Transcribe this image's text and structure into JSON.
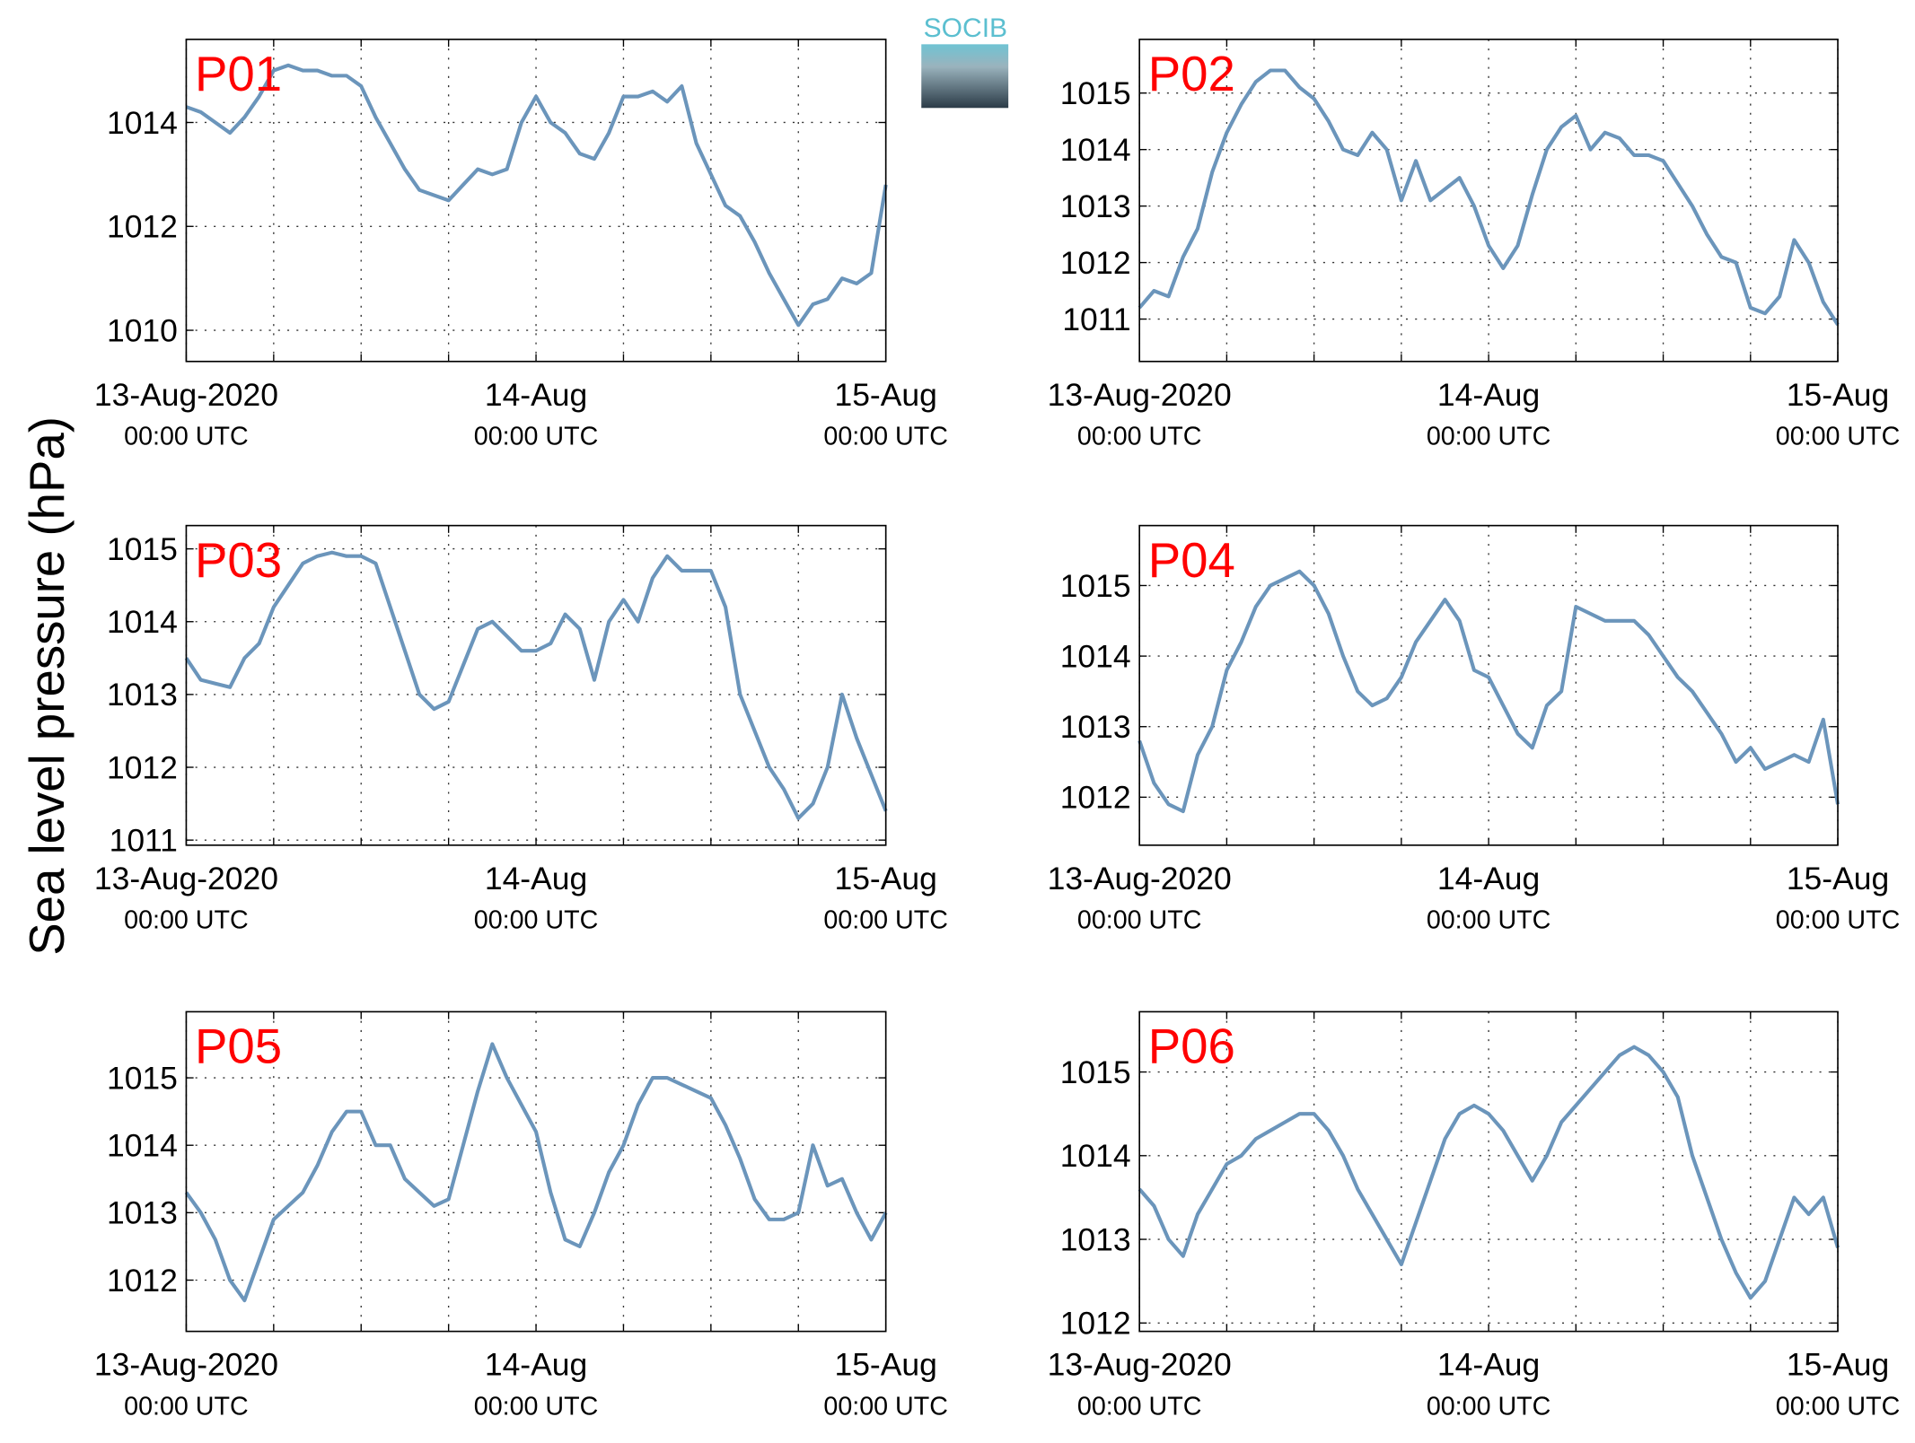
{
  "ylabel": "Sea level pressure (hPa)",
  "logo": "SOCIB",
  "chart_data": [
    {
      "type": "line",
      "title": "P01",
      "title_color": "#ff0000",
      "color": "#6b95bb",
      "grid": true,
      "x": [
        0,
        1,
        2,
        3,
        4,
        5,
        6,
        7,
        8,
        9,
        10,
        11,
        12,
        13,
        14,
        15,
        16,
        17,
        18,
        19,
        20,
        21,
        22,
        23,
        24,
        25,
        26,
        27,
        28,
        29,
        30,
        31,
        32,
        33,
        34,
        35,
        36,
        37,
        38,
        39,
        40,
        41,
        42,
        43,
        44,
        45,
        46,
        47,
        48
      ],
      "values": [
        1014.3,
        1014.2,
        1014.0,
        1013.8,
        1014.1,
        1014.5,
        1015.0,
        1015.1,
        1015.0,
        1015.0,
        1014.9,
        1014.9,
        1014.7,
        1014.1,
        1013.6,
        1013.1,
        1012.7,
        1012.6,
        1012.5,
        1012.8,
        1013.1,
        1013.0,
        1013.1,
        1014.0,
        1014.5,
        1014.0,
        1013.8,
        1013.4,
        1013.3,
        1013.8,
        1014.5,
        1014.5,
        1014.6,
        1014.4,
        1014.7,
        1013.6,
        1013.0,
        1012.4,
        1012.2,
        1011.7,
        1011.1,
        1010.6,
        1010.1,
        1010.5,
        1010.6,
        1011.0,
        1010.9,
        1011.1,
        1012.8
      ],
      "xlim": [
        0,
        48
      ],
      "xticks": [
        {
          "value": 0,
          "label": "13-Aug-2020"
        },
        {
          "value": 24,
          "label": "14-Aug"
        },
        {
          "value": 48,
          "label": "15-Aug"
        }
      ],
      "xtick_sublabel": "00:00 UTC",
      "xminorticks": [
        6,
        12,
        18,
        30,
        36,
        42
      ],
      "ylim": [
        1009.4,
        1015.6
      ],
      "yticks": [
        1010,
        1012,
        1014
      ]
    },
    {
      "type": "line",
      "title": "P02",
      "title_color": "#ff0000",
      "color": "#6b95bb",
      "grid": true,
      "x": [
        0,
        1,
        2,
        3,
        4,
        5,
        6,
        7,
        8,
        9,
        10,
        11,
        12,
        13,
        14,
        15,
        16,
        17,
        18,
        19,
        20,
        21,
        22,
        23,
        24,
        25,
        26,
        27,
        28,
        29,
        30,
        31,
        32,
        33,
        34,
        35,
        36,
        37,
        38,
        39,
        40,
        41,
        42,
        43,
        44,
        45,
        46,
        47,
        48
      ],
      "values": [
        1011.2,
        1011.5,
        1011.4,
        1012.1,
        1012.6,
        1013.6,
        1014.3,
        1014.8,
        1015.2,
        1015.4,
        1015.4,
        1015.1,
        1014.9,
        1014.5,
        1014.0,
        1013.9,
        1014.3,
        1014.0,
        1013.1,
        1013.8,
        1013.1,
        1013.3,
        1013.5,
        1013.0,
        1012.3,
        1011.9,
        1012.3,
        1013.2,
        1014.0,
        1014.4,
        1014.6,
        1014.0,
        1014.3,
        1014.2,
        1013.9,
        1013.9,
        1013.8,
        1013.4,
        1013.0,
        1012.5,
        1012.1,
        1012.0,
        1011.2,
        1011.1,
        1011.4,
        1012.4,
        1012.0,
        1011.3,
        1010.9
      ],
      "xlim": [
        0,
        48
      ],
      "xticks": [
        {
          "value": 0,
          "label": "13-Aug-2020"
        },
        {
          "value": 24,
          "label": "14-Aug"
        },
        {
          "value": 48,
          "label": "15-Aug"
        }
      ],
      "xtick_sublabel": "00:00 UTC",
      "xminorticks": [
        6,
        12,
        18,
        30,
        36,
        42
      ],
      "ylim": [
        1010.25,
        1015.95
      ],
      "yticks": [
        1011,
        1012,
        1013,
        1014,
        1015
      ]
    },
    {
      "type": "line",
      "title": "P03",
      "title_color": "#ff0000",
      "color": "#6b95bb",
      "grid": true,
      "x": [
        0,
        1,
        2,
        3,
        4,
        5,
        6,
        7,
        8,
        9,
        10,
        11,
        12,
        13,
        14,
        15,
        16,
        17,
        18,
        19,
        20,
        21,
        22,
        23,
        24,
        25,
        26,
        27,
        28,
        29,
        30,
        31,
        32,
        33,
        34,
        35,
        36,
        37,
        38,
        39,
        40,
        41,
        42,
        43,
        44,
        45,
        46,
        47,
        48
      ],
      "values": [
        1013.5,
        1013.2,
        1013.15,
        1013.1,
        1013.5,
        1013.7,
        1014.2,
        1014.5,
        1014.8,
        1014.9,
        1014.95,
        1014.9,
        1014.9,
        1014.8,
        1014.2,
        1013.6,
        1013.0,
        1012.8,
        1012.9,
        1013.4,
        1013.9,
        1014.0,
        1013.8,
        1013.6,
        1013.6,
        1013.7,
        1014.1,
        1013.9,
        1013.2,
        1014.0,
        1014.3,
        1014.0,
        1014.6,
        1014.9,
        1014.7,
        1014.7,
        1014.7,
        1014.2,
        1013.0,
        1012.5,
        1012.0,
        1011.7,
        1011.3,
        1011.5,
        1012.0,
        1013.0,
        1012.4,
        1011.9,
        1011.4
      ],
      "xlim": [
        0,
        48
      ],
      "xticks": [
        {
          "value": 0,
          "label": "13-Aug-2020"
        },
        {
          "value": 24,
          "label": "14-Aug"
        },
        {
          "value": 48,
          "label": "15-Aug"
        }
      ],
      "xtick_sublabel": "00:00 UTC",
      "xminorticks": [
        6,
        12,
        18,
        30,
        36,
        42
      ],
      "ylim": [
        1010.93,
        1015.32
      ],
      "yticks": [
        1011,
        1012,
        1013,
        1014,
        1015
      ]
    },
    {
      "type": "line",
      "title": "P04",
      "title_color": "#ff0000",
      "color": "#6b95bb",
      "grid": true,
      "x": [
        0,
        1,
        2,
        3,
        4,
        5,
        6,
        7,
        8,
        9,
        10,
        11,
        12,
        13,
        14,
        15,
        16,
        17,
        18,
        19,
        20,
        21,
        22,
        23,
        24,
        25,
        26,
        27,
        28,
        29,
        30,
        31,
        32,
        33,
        34,
        35,
        36,
        37,
        38,
        39,
        40,
        41,
        42,
        43,
        44,
        45,
        46,
        47,
        48
      ],
      "values": [
        1012.8,
        1012.2,
        1011.9,
        1011.8,
        1012.6,
        1013.0,
        1013.8,
        1014.2,
        1014.7,
        1015.0,
        1015.1,
        1015.2,
        1015.0,
        1014.6,
        1014.0,
        1013.5,
        1013.3,
        1013.4,
        1013.7,
        1014.2,
        1014.5,
        1014.8,
        1014.5,
        1013.8,
        1013.7,
        1013.3,
        1012.9,
        1012.7,
        1013.3,
        1013.5,
        1014.7,
        1014.6,
        1014.5,
        1014.5,
        1014.5,
        1014.3,
        1014.0,
        1013.7,
        1013.5,
        1013.2,
        1012.9,
        1012.5,
        1012.7,
        1012.4,
        1012.5,
        1012.6,
        1012.5,
        1013.1,
        1011.9
      ],
      "xlim": [
        0,
        48
      ],
      "xticks": [
        {
          "value": 0,
          "label": "13-Aug-2020"
        },
        {
          "value": 24,
          "label": "14-Aug"
        },
        {
          "value": 48,
          "label": "15-Aug"
        }
      ],
      "xtick_sublabel": "00:00 UTC",
      "xminorticks": [
        6,
        12,
        18,
        30,
        36,
        42
      ],
      "ylim": [
        1011.32,
        1015.85
      ],
      "yticks": [
        1012,
        1013,
        1014,
        1015
      ]
    },
    {
      "type": "line",
      "title": "P05",
      "title_color": "#ff0000",
      "color": "#6b95bb",
      "grid": true,
      "x": [
        0,
        1,
        2,
        3,
        4,
        5,
        6,
        7,
        8,
        9,
        10,
        11,
        12,
        13,
        14,
        15,
        16,
        17,
        18,
        19,
        20,
        21,
        22,
        23,
        24,
        25,
        26,
        27,
        28,
        29,
        30,
        31,
        32,
        33,
        34,
        35,
        36,
        37,
        38,
        39,
        40,
        41,
        42,
        43,
        44,
        45,
        46,
        47,
        48
      ],
      "values": [
        1013.3,
        1013.0,
        1012.6,
        1012.0,
        1011.7,
        1012.3,
        1012.9,
        1013.1,
        1013.3,
        1013.7,
        1014.2,
        1014.5,
        1014.5,
        1014.0,
        1014.0,
        1013.5,
        1013.3,
        1013.1,
        1013.2,
        1014.0,
        1014.8,
        1015.5,
        1015.0,
        1014.6,
        1014.2,
        1013.3,
        1012.6,
        1012.5,
        1013.0,
        1013.6,
        1014.0,
        1014.6,
        1015.0,
        1015.0,
        1014.9,
        1014.8,
        1014.7,
        1014.3,
        1013.8,
        1013.2,
        1012.9,
        1012.9,
        1013.0,
        1014.0,
        1013.4,
        1013.5,
        1013.0,
        1012.6,
        1013.0
      ],
      "xlim": [
        0,
        48
      ],
      "xticks": [
        {
          "value": 0,
          "label": "13-Aug-2020"
        },
        {
          "value": 24,
          "label": "14-Aug"
        },
        {
          "value": 48,
          "label": "15-Aug"
        }
      ],
      "xtick_sublabel": "00:00 UTC",
      "xminorticks": [
        6,
        12,
        18,
        30,
        36,
        42
      ],
      "ylim": [
        1011.24,
        1015.98
      ],
      "yticks": [
        1012,
        1013,
        1014,
        1015
      ]
    },
    {
      "type": "line",
      "title": "P06",
      "title_color": "#ff0000",
      "color": "#6b95bb",
      "grid": true,
      "x": [
        0,
        1,
        2,
        3,
        4,
        5,
        6,
        7,
        8,
        9,
        10,
        11,
        12,
        13,
        14,
        15,
        16,
        17,
        18,
        19,
        20,
        21,
        22,
        23,
        24,
        25,
        26,
        27,
        28,
        29,
        30,
        31,
        32,
        33,
        34,
        35,
        36,
        37,
        38,
        39,
        40,
        41,
        42,
        43,
        44,
        45,
        46,
        47,
        48
      ],
      "values": [
        1013.6,
        1013.4,
        1013.0,
        1012.8,
        1013.3,
        1013.6,
        1013.9,
        1014.0,
        1014.2,
        1014.3,
        1014.4,
        1014.5,
        1014.5,
        1014.3,
        1014.0,
        1013.6,
        1013.3,
        1013.0,
        1012.7,
        1013.2,
        1013.7,
        1014.2,
        1014.5,
        1014.6,
        1014.5,
        1014.3,
        1014.0,
        1013.7,
        1014.0,
        1014.4,
        1014.6,
        1014.8,
        1015.0,
        1015.2,
        1015.3,
        1015.2,
        1015.0,
        1014.7,
        1014.0,
        1013.5,
        1013.0,
        1012.6,
        1012.3,
        1012.5,
        1013.0,
        1013.5,
        1013.3,
        1013.5,
        1012.9
      ],
      "xlim": [
        0,
        48
      ],
      "xticks": [
        {
          "value": 0,
          "label": "13-Aug-2020"
        },
        {
          "value": 24,
          "label": "14-Aug"
        },
        {
          "value": 48,
          "label": "15-Aug"
        }
      ],
      "xtick_sublabel": "00:00 UTC",
      "xminorticks": [
        6,
        12,
        18,
        30,
        36,
        42
      ],
      "ylim": [
        1011.9,
        1015.72
      ],
      "yticks": [
        1012,
        1013,
        1014,
        1015
      ]
    }
  ]
}
